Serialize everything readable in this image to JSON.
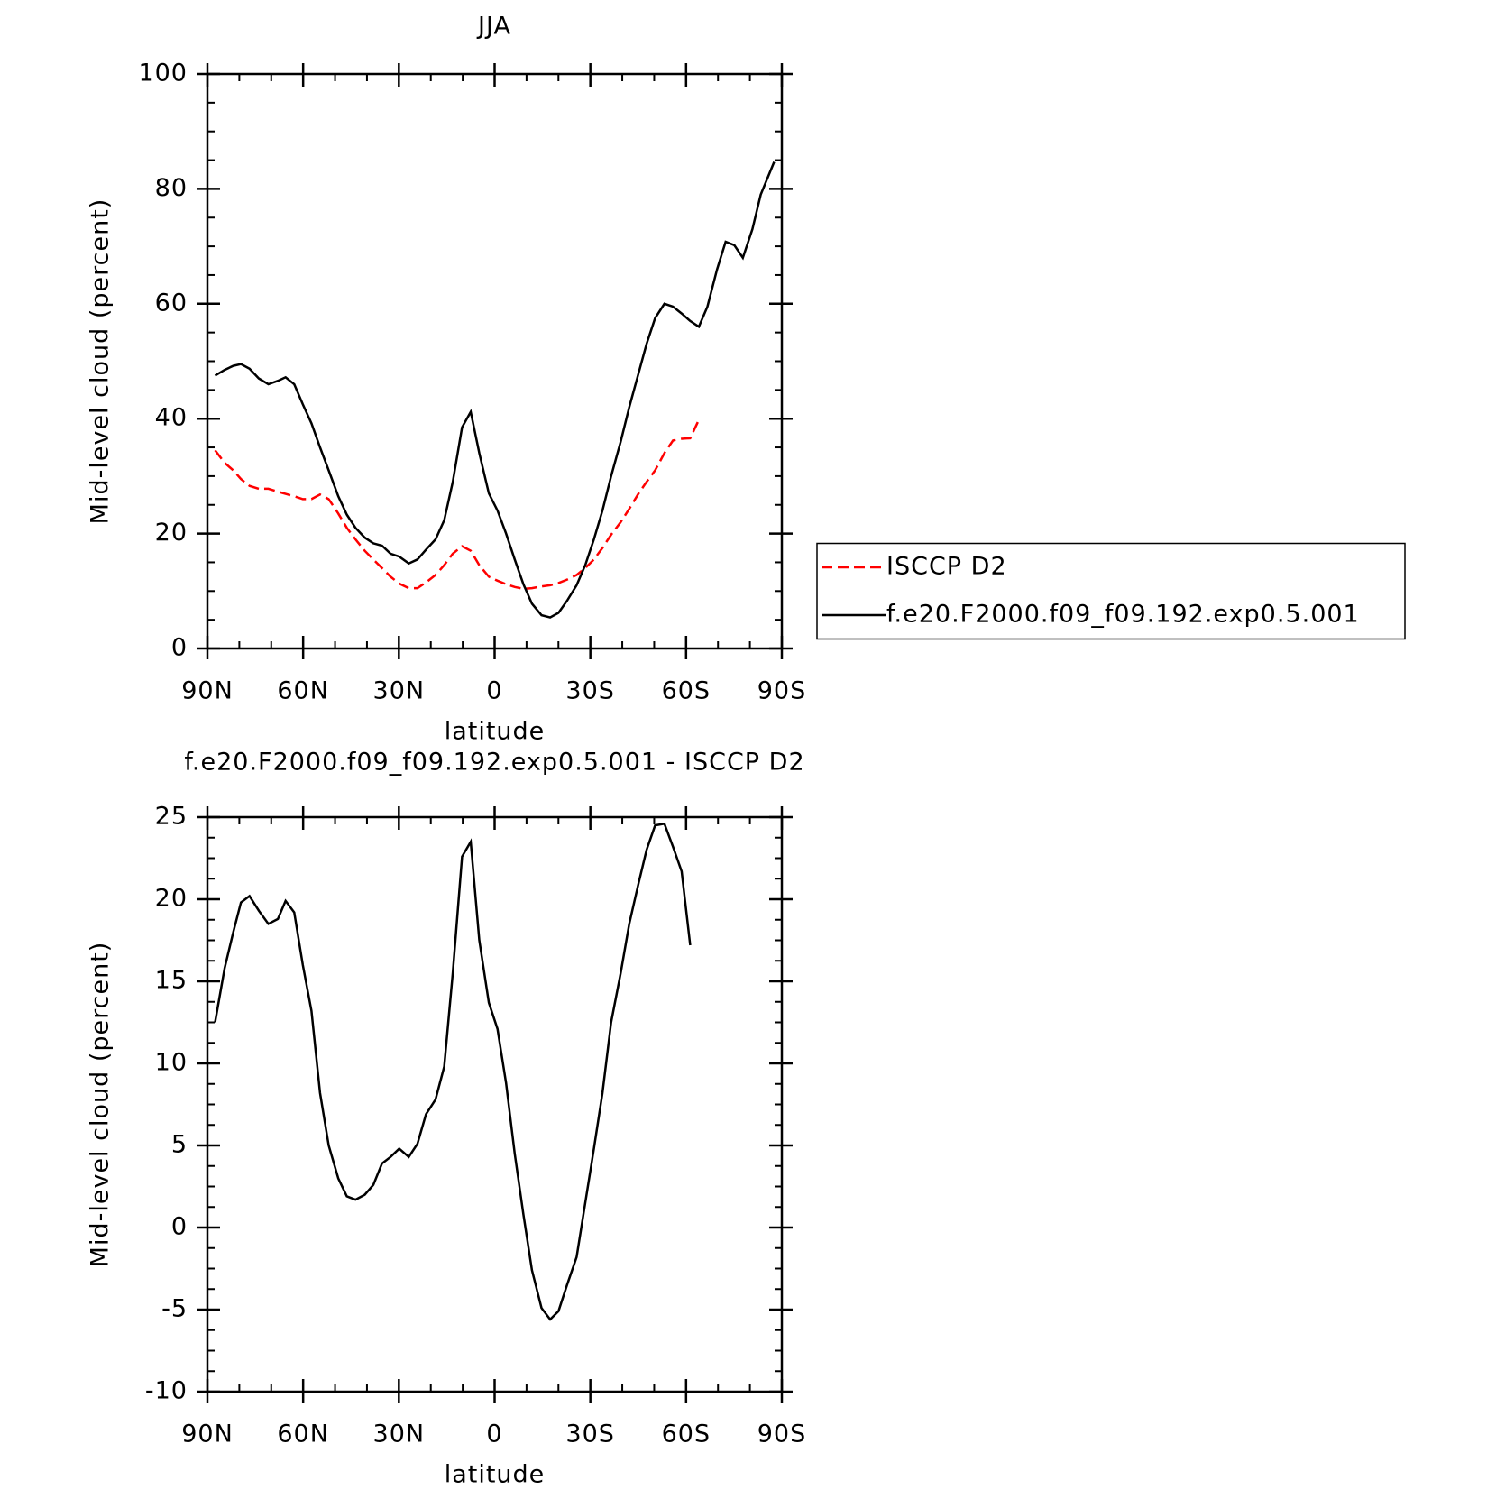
{
  "chart_data": [
    {
      "type": "line",
      "title": "JJA",
      "xlabel": "latitude",
      "ylabel": "Mid-level cloud (percent)",
      "x": [
        87.6,
        84.6,
        81.9,
        79.5,
        76.8,
        73.9,
        70.9,
        67.9,
        65.5,
        62.8,
        60.1,
        57.4,
        54.7,
        52.0,
        49.0,
        46.3,
        43.6,
        40.7,
        38.0,
        35.3,
        32.6,
        29.9,
        26.9,
        24.2,
        21.5,
        18.5,
        15.8,
        13.1,
        10.2,
        7.5,
        4.8,
        1.8,
        -0.9,
        -3.6,
        -6.3,
        -9.0,
        -11.7,
        -14.7,
        -17.4,
        -20.0,
        -22.7,
        -25.7,
        -28.4,
        -31.1,
        -33.8,
        -36.5,
        -39.5,
        -42.2,
        -44.9,
        -47.6,
        -50.3,
        -53.2,
        -55.9,
        -58.6,
        -61.3,
        -64.0,
        -66.7,
        -69.7,
        -72.4,
        -75.1,
        -77.8,
        -80.8,
        -83.4,
        -87.6
      ],
      "series": [
        {
          "name": "ISCCP D2",
          "color": "#ff0000",
          "dash": "dashed",
          "values": [
            34.5,
            32.3,
            31,
            29.5,
            28.3,
            27.8,
            27.8,
            27.3,
            26.9,
            26.5,
            26,
            26,
            26.8,
            26,
            23.5,
            21,
            19,
            17,
            15.5,
            14,
            12.5,
            11.3,
            10.5,
            10.5,
            11.5,
            12.8,
            14.5,
            16.5,
            17.8,
            17,
            14.5,
            12.5,
            11.8,
            11.2,
            10.7,
            10.4,
            10.5,
            10.8,
            11,
            11.4,
            12,
            12.8,
            14,
            15.5,
            17.5,
            19.8,
            22,
            24.3,
            26.8,
            29,
            31,
            34,
            36.2,
            36.5,
            36.6,
            39.8,
            null,
            null,
            null,
            null,
            null,
            null,
            null,
            null
          ]
        },
        {
          "name": "f.e20.F2000.f09_f09.192.exp0.5.001",
          "color": "#000000",
          "dash": "solid",
          "values": [
            47.5,
            48.5,
            49.2,
            49.5,
            48.7,
            47,
            46,
            46.6,
            47.2,
            46,
            42.5,
            39.2,
            35,
            31,
            26.5,
            23.3,
            21,
            19.3,
            18.3,
            17.9,
            16.5,
            16,
            14.8,
            15.5,
            17.2,
            19,
            22.3,
            29,
            38.5,
            41.2,
            34,
            27,
            24,
            20,
            15.5,
            11.2,
            7.8,
            5.8,
            5.4,
            6.2,
            8.3,
            11,
            14.5,
            19,
            24,
            30,
            36,
            42,
            47.5,
            53,
            57.5,
            60,
            59.5,
            58.3,
            57,
            56,
            59.5,
            66,
            70.8,
            70.2,
            68,
            73,
            79,
            84.7
          ]
        }
      ],
      "xlim": [
        90,
        -90
      ],
      "xticks": [
        {
          "value": 90,
          "label": "90N"
        },
        {
          "value": 60,
          "label": "60N"
        },
        {
          "value": 30,
          "label": "30N"
        },
        0,
        {
          "value": -30,
          "label": "30S"
        },
        {
          "value": -60,
          "label": "60S"
        },
        {
          "value": -90,
          "label": "90S"
        }
      ],
      "ylim": [
        0,
        100
      ],
      "yticks": [
        0,
        20,
        40,
        60,
        80,
        100
      ],
      "legend": "right"
    },
    {
      "type": "line",
      "title": "f.e20.F2000.f09_f09.192.exp0.5.001 - ISCCP D2",
      "xlabel": "latitude",
      "ylabel": "Mid-level cloud (percent)",
      "x": [
        87.6,
        84.6,
        81.9,
        79.5,
        76.8,
        73.9,
        70.9,
        67.9,
        65.5,
        62.8,
        60.1,
        57.4,
        54.7,
        52.0,
        49.0,
        46.3,
        43.6,
        40.7,
        38.0,
        35.3,
        32.6,
        29.9,
        26.9,
        24.2,
        21.5,
        18.5,
        15.8,
        13.1,
        10.2,
        7.5,
        4.8,
        1.8,
        -0.9,
        -3.6,
        -6.3,
        -9.0,
        -11.7,
        -14.7,
        -17.4,
        -20.0,
        -22.7,
        -25.7,
        -28.4,
        -31.1,
        -33.8,
        -36.5,
        -39.5,
        -42.2,
        -44.9,
        -47.6,
        -50.3,
        -53.2,
        -55.9,
        -58.6,
        -61.3
      ],
      "series": [
        {
          "color": "#000000",
          "dash": "solid",
          "values": [
            12.5,
            15.8,
            18,
            19.8,
            20.2,
            19.3,
            18.5,
            18.8,
            19.9,
            19.2,
            16,
            13.2,
            8.2,
            5,
            3,
            1.9,
            1.7,
            2,
            2.6,
            3.9,
            4.3,
            4.8,
            4.3,
            5.1,
            6.9,
            7.8,
            9.8,
            15.5,
            22.6,
            23.5,
            17.5,
            13.7,
            12.1,
            8.8,
            4.5,
            0.8,
            -2.6,
            -4.9,
            -5.6,
            -5.1,
            -3.5,
            -1.8,
            1.5,
            4.8,
            8.2,
            12.5,
            15.5,
            18.5,
            20.8,
            23,
            24.5,
            24.6,
            23.2,
            21.7,
            17.2
          ]
        }
      ],
      "xlim": [
        90,
        -90
      ],
      "xticks": [
        {
          "value": 90,
          "label": "90N"
        },
        {
          "value": 60,
          "label": "60N"
        },
        {
          "value": 30,
          "label": "30N"
        },
        0,
        {
          "value": -30,
          "label": "30S"
        },
        {
          "value": -60,
          "label": "60S"
        },
        {
          "value": -90,
          "label": "90S"
        }
      ],
      "ylim": [
        -10,
        25
      ],
      "yticks": [
        -10,
        -5,
        0,
        5,
        10,
        15,
        20,
        25
      ]
    }
  ]
}
